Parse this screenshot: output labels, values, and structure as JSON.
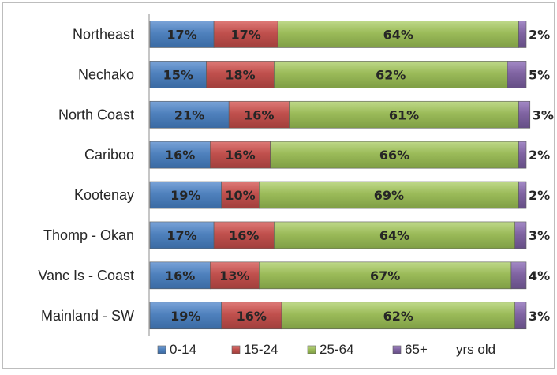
{
  "chart_data": {
    "type": "bar",
    "orientation": "horizontal",
    "stacked": true,
    "title": "",
    "xlabel": "",
    "ylabel": "",
    "xlim": [
      0,
      100
    ],
    "grid": false,
    "legend_position": "bottom",
    "categories": [
      "Northeast",
      "Nechako",
      "North Coast",
      "Cariboo",
      "Kootenay",
      "Thomp - Okan",
      "Vanc Is - Coast",
      "Mainland - SW"
    ],
    "series": [
      {
        "name": "0-14",
        "color": "#4f81bd",
        "values": [
          17,
          15,
          21,
          16,
          19,
          17,
          16,
          19
        ]
      },
      {
        "name": "15-24",
        "color": "#c0504d",
        "values": [
          17,
          18,
          16,
          16,
          10,
          16,
          13,
          16
        ]
      },
      {
        "name": "25-64",
        "color": "#9bbb59",
        "values": [
          64,
          62,
          61,
          66,
          69,
          64,
          67,
          62
        ]
      },
      {
        "name": "65+",
        "color": "#8064a2",
        "values": [
          2,
          5,
          3,
          2,
          2,
          3,
          4,
          3
        ]
      }
    ],
    "labels": {
      "0-14": [
        "17%",
        "15%",
        "21%",
        "16%",
        "19%",
        "17%",
        "16%",
        "19%"
      ],
      "15-24": [
        "17%",
        "18%",
        "16%",
        "16%",
        "10%",
        "16%",
        "13%",
        "16%"
      ],
      "25-64": [
        "64%",
        "62%",
        "61%",
        "66%",
        "69%",
        "64%",
        "67%",
        "62%"
      ],
      "65+": [
        "2%",
        "5%",
        "3%",
        "2%",
        "2%",
        "3%",
        "4%",
        "3%"
      ]
    },
    "legend_suffix": "yrs old"
  }
}
